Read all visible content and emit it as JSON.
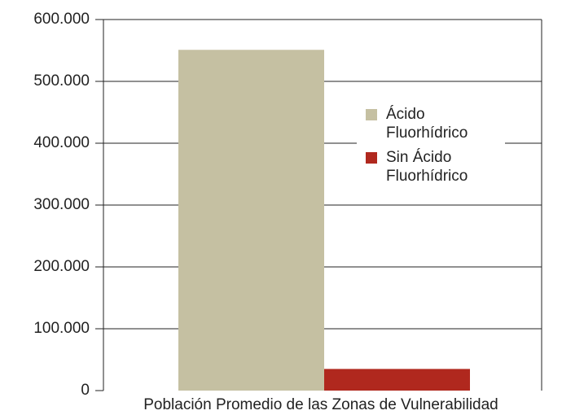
{
  "chart_data": {
    "type": "bar",
    "categories": [
      "Población Promedio de las Zonas de Vulnerabilidad"
    ],
    "series": [
      {
        "name": "Ácido Fluorhídrico",
        "color": "#c5c0a2",
        "values": [
          551000
        ]
      },
      {
        "name": "Sin Ácido Fluorhídrico",
        "color": "#b0281e",
        "values": [
          35000
        ]
      }
    ],
    "ylim": [
      0,
      600000
    ],
    "yticks": [
      0,
      {
        "value": 100000,
        "label": "100.000"
      },
      {
        "value": 200000,
        "label": "200.000"
      },
      {
        "value": 300000,
        "label": "300.000"
      },
      {
        "value": 400000,
        "label": "400.000"
      },
      {
        "value": 500000,
        "label": "500.000"
      },
      {
        "value": 600000,
        "label": "600.000"
      }
    ],
    "grid": true,
    "legend": "right"
  }
}
